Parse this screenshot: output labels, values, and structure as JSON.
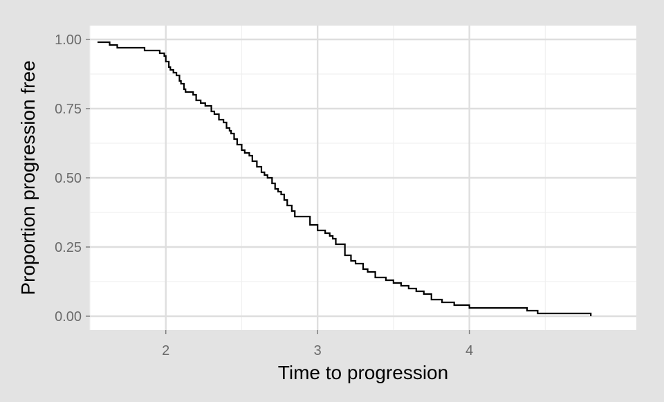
{
  "chart_data": {
    "type": "line",
    "title": "",
    "xlabel": "Time to progression",
    "ylabel": "Proportion progression free",
    "xlim": [
      1.5,
      5.1
    ],
    "ylim": [
      -0.05,
      1.05
    ],
    "x_major_ticks": [
      2,
      3,
      4
    ],
    "x_tick_labels": [
      "2",
      "3",
      "4"
    ],
    "x_minor_ticks": [
      1.5,
      2.5,
      3.5,
      4.5
    ],
    "y_major_ticks": [
      0,
      0.25,
      0.5,
      0.75,
      1
    ],
    "y_tick_labels": [
      "0.00",
      "0.25",
      "0.50",
      "0.75",
      "1.00"
    ],
    "y_minor_ticks": [
      0.125,
      0.375,
      0.625,
      0.875
    ],
    "grid": true,
    "legend": "none",
    "colors": {
      "background": "#e3e3e3",
      "panel": "#ffffff",
      "grid_major": "#dedede",
      "grid_minor": "#f0f0f0",
      "line": "#000000"
    },
    "series": [
      {
        "step": "post",
        "x": [
          1.55,
          1.63,
          1.68,
          1.86,
          1.96,
          1.99,
          2.0,
          2.02,
          2.03,
          2.05,
          2.07,
          2.09,
          2.1,
          2.12,
          2.13,
          2.18,
          2.2,
          2.23,
          2.26,
          2.3,
          2.32,
          2.35,
          2.38,
          2.4,
          2.42,
          2.43,
          2.45,
          2.47,
          2.5,
          2.52,
          2.55,
          2.57,
          2.6,
          2.63,
          2.65,
          2.67,
          2.7,
          2.72,
          2.74,
          2.76,
          2.78,
          2.8,
          2.83,
          2.85,
          2.95,
          3.0,
          3.05,
          3.08,
          3.1,
          3.12,
          3.18,
          3.22,
          3.25,
          3.3,
          3.33,
          3.38,
          3.45,
          3.5,
          3.55,
          3.6,
          3.65,
          3.7,
          3.75,
          3.82,
          3.9,
          4.0,
          4.38,
          4.45,
          4.8
        ],
        "y": [
          0.99,
          0.98,
          0.97,
          0.96,
          0.95,
          0.94,
          0.92,
          0.9,
          0.89,
          0.88,
          0.87,
          0.85,
          0.84,
          0.82,
          0.81,
          0.8,
          0.78,
          0.77,
          0.76,
          0.74,
          0.73,
          0.71,
          0.7,
          0.68,
          0.67,
          0.66,
          0.64,
          0.62,
          0.6,
          0.59,
          0.58,
          0.56,
          0.54,
          0.52,
          0.51,
          0.5,
          0.48,
          0.46,
          0.45,
          0.44,
          0.42,
          0.4,
          0.38,
          0.36,
          0.33,
          0.31,
          0.3,
          0.29,
          0.28,
          0.26,
          0.22,
          0.2,
          0.19,
          0.17,
          0.16,
          0.14,
          0.13,
          0.12,
          0.11,
          0.1,
          0.09,
          0.08,
          0.06,
          0.05,
          0.04,
          0.03,
          0.02,
          0.01,
          0.0
        ]
      }
    ]
  }
}
